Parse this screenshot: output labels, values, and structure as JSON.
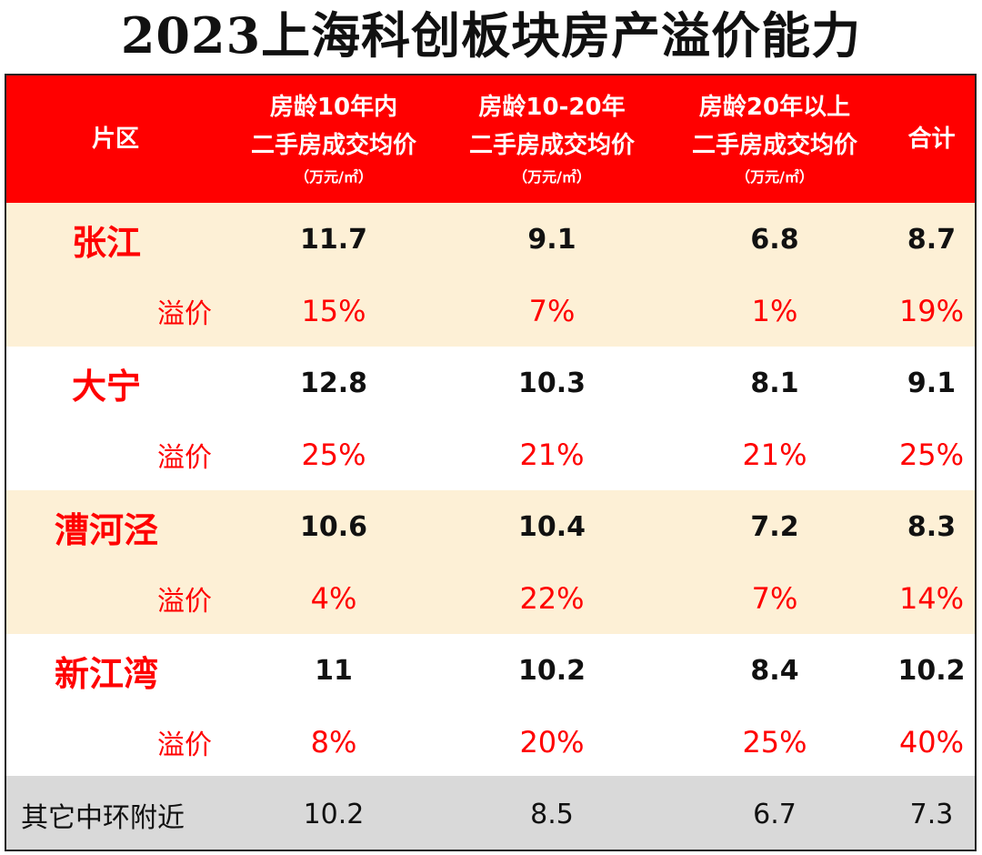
{
  "title": "2023上海科创板块房产溢价能力",
  "chart_data": {
    "type": "table",
    "header": {
      "district": "片区",
      "col1": {
        "line1": "房龄10年内",
        "line2": "二手房成交均价",
        "unit": "（万元/㎡）"
      },
      "col2": {
        "line1": "房龄10-20年",
        "line2": "二手房成交均价",
        "unit": "（万元/㎡）"
      },
      "col3": {
        "line1": "房龄20年以上",
        "line2": "二手房成交均价",
        "unit": "（万元/㎡）"
      },
      "total": "合计"
    },
    "premium_label": "溢价",
    "rows": [
      {
        "district": "张江",
        "values": [
          "11.7",
          "9.1",
          "6.8",
          "8.7"
        ],
        "premiums": [
          "15%",
          "7%",
          "1%",
          "19%"
        ]
      },
      {
        "district": "大宁",
        "values": [
          "12.8",
          "10.3",
          "8.1",
          "9.1"
        ],
        "premiums": [
          "25%",
          "21%",
          "21%",
          "25%"
        ]
      },
      {
        "district": "漕河泾",
        "values": [
          "10.6",
          "10.4",
          "7.2",
          "8.3"
        ],
        "premiums": [
          "4%",
          "22%",
          "7%",
          "14%"
        ]
      },
      {
        "district": "新江湾",
        "values": [
          "11",
          "10.2",
          "8.4",
          "10.2"
        ],
        "premiums": [
          "8%",
          "20%",
          "25%",
          "40%"
        ]
      }
    ],
    "other": {
      "district": "其它中环附近",
      "values": [
        "10.2",
        "8.5",
        "6.7",
        "7.3"
      ]
    },
    "colors": {
      "header_bg": "#ff0000",
      "band_beige": "#fdf0d6",
      "band_white": "#ffffff",
      "other_bg": "#d9d9d9",
      "accent": "#ff0000"
    }
  }
}
